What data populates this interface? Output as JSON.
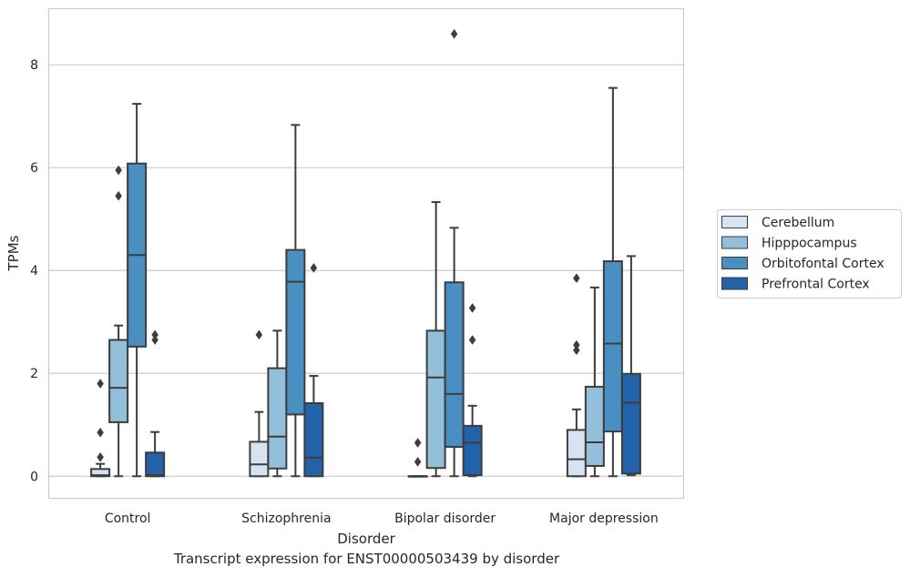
{
  "caption": "Transcript expression for ENST00000503439 by disorder",
  "colors": {
    "series": [
      "#d6e3f2",
      "#93bfdb",
      "#4a8fc2",
      "#2262a8"
    ],
    "grid": "#cccccc",
    "frame": "#cccccc",
    "box_edge": "#3d3d3d"
  },
  "chart_data": {
    "type": "box",
    "xlabel": "Disorder",
    "ylabel": "TPMs",
    "ylim": [
      -0.42,
      9.1
    ],
    "yticks": [
      0,
      2,
      4,
      6,
      8
    ],
    "yticklabels": [
      "0",
      "2",
      "4",
      "6",
      "8"
    ],
    "grid": true,
    "legend_position": "right, outside plot",
    "categories": [
      "Control",
      "Schizophrenia",
      "Bipolar disorder",
      "Major depression"
    ],
    "series": [
      {
        "name": "Cerebellum",
        "boxes": [
          {
            "q1": 0,
            "median": 0.02,
            "q3": 0.14,
            "whisker_low": 0,
            "whisker_high": 0.24,
            "outliers": [
              0.37,
              0.85,
              1.8
            ]
          },
          {
            "q1": 0,
            "median": 0.23,
            "q3": 0.67,
            "whisker_low": 0,
            "whisker_high": 1.25,
            "outliers": [
              2.75
            ]
          },
          {
            "q1": 0,
            "median": 0,
            "q3": 0,
            "whisker_low": 0,
            "whisker_high": 0,
            "outliers": [
              0.28,
              0.65
            ]
          },
          {
            "q1": 0,
            "median": 0.33,
            "q3": 0.9,
            "whisker_low": 0,
            "whisker_high": 1.3,
            "outliers": [
              2.45,
              2.55,
              3.85
            ]
          }
        ]
      },
      {
        "name": "Hipppocampus",
        "boxes": [
          {
            "q1": 1.05,
            "median": 1.72,
            "q3": 2.65,
            "whisker_low": 0,
            "whisker_high": 2.93,
            "outliers": [
              5.45,
              5.95
            ]
          },
          {
            "q1": 0.15,
            "median": 0.77,
            "q3": 2.1,
            "whisker_low": 0,
            "whisker_high": 2.83,
            "outliers": []
          },
          {
            "q1": 0.16,
            "median": 1.92,
            "q3": 2.83,
            "whisker_low": 0,
            "whisker_high": 5.33,
            "outliers": []
          },
          {
            "q1": 0.2,
            "median": 0.66,
            "q3": 1.74,
            "whisker_low": 0,
            "whisker_high": 3.67,
            "outliers": []
          }
        ]
      },
      {
        "name": "Orbitofontal Cortex",
        "boxes": [
          {
            "q1": 2.52,
            "median": 4.3,
            "q3": 6.08,
            "whisker_low": 0,
            "whisker_high": 7.24,
            "outliers": []
          },
          {
            "q1": 1.2,
            "median": 3.78,
            "q3": 4.4,
            "whisker_low": 0,
            "whisker_high": 6.83,
            "outliers": []
          },
          {
            "q1": 0.57,
            "median": 1.6,
            "q3": 3.77,
            "whisker_low": 0,
            "whisker_high": 4.83,
            "outliers": [
              8.6
            ]
          },
          {
            "q1": 0.87,
            "median": 2.58,
            "q3": 4.18,
            "whisker_low": 0,
            "whisker_high": 7.55,
            "outliers": []
          }
        ]
      },
      {
        "name": "Prefrontal Cortex",
        "boxes": [
          {
            "q1": 0,
            "median": 0.02,
            "q3": 0.46,
            "whisker_low": 0,
            "whisker_high": 0.86,
            "outliers": [
              2.65,
              2.75
            ]
          },
          {
            "q1": 0,
            "median": 0.36,
            "q3": 1.42,
            "whisker_low": 0,
            "whisker_high": 1.95,
            "outliers": [
              4.05
            ]
          },
          {
            "q1": 0.02,
            "median": 0.65,
            "q3": 0.98,
            "whisker_low": 0,
            "whisker_high": 1.37,
            "outliers": [
              2.65,
              3.27
            ]
          },
          {
            "q1": 0.05,
            "median": 1.43,
            "q3": 1.99,
            "whisker_low": 0.02,
            "whisker_high": 4.28,
            "outliers": []
          }
        ]
      }
    ]
  }
}
